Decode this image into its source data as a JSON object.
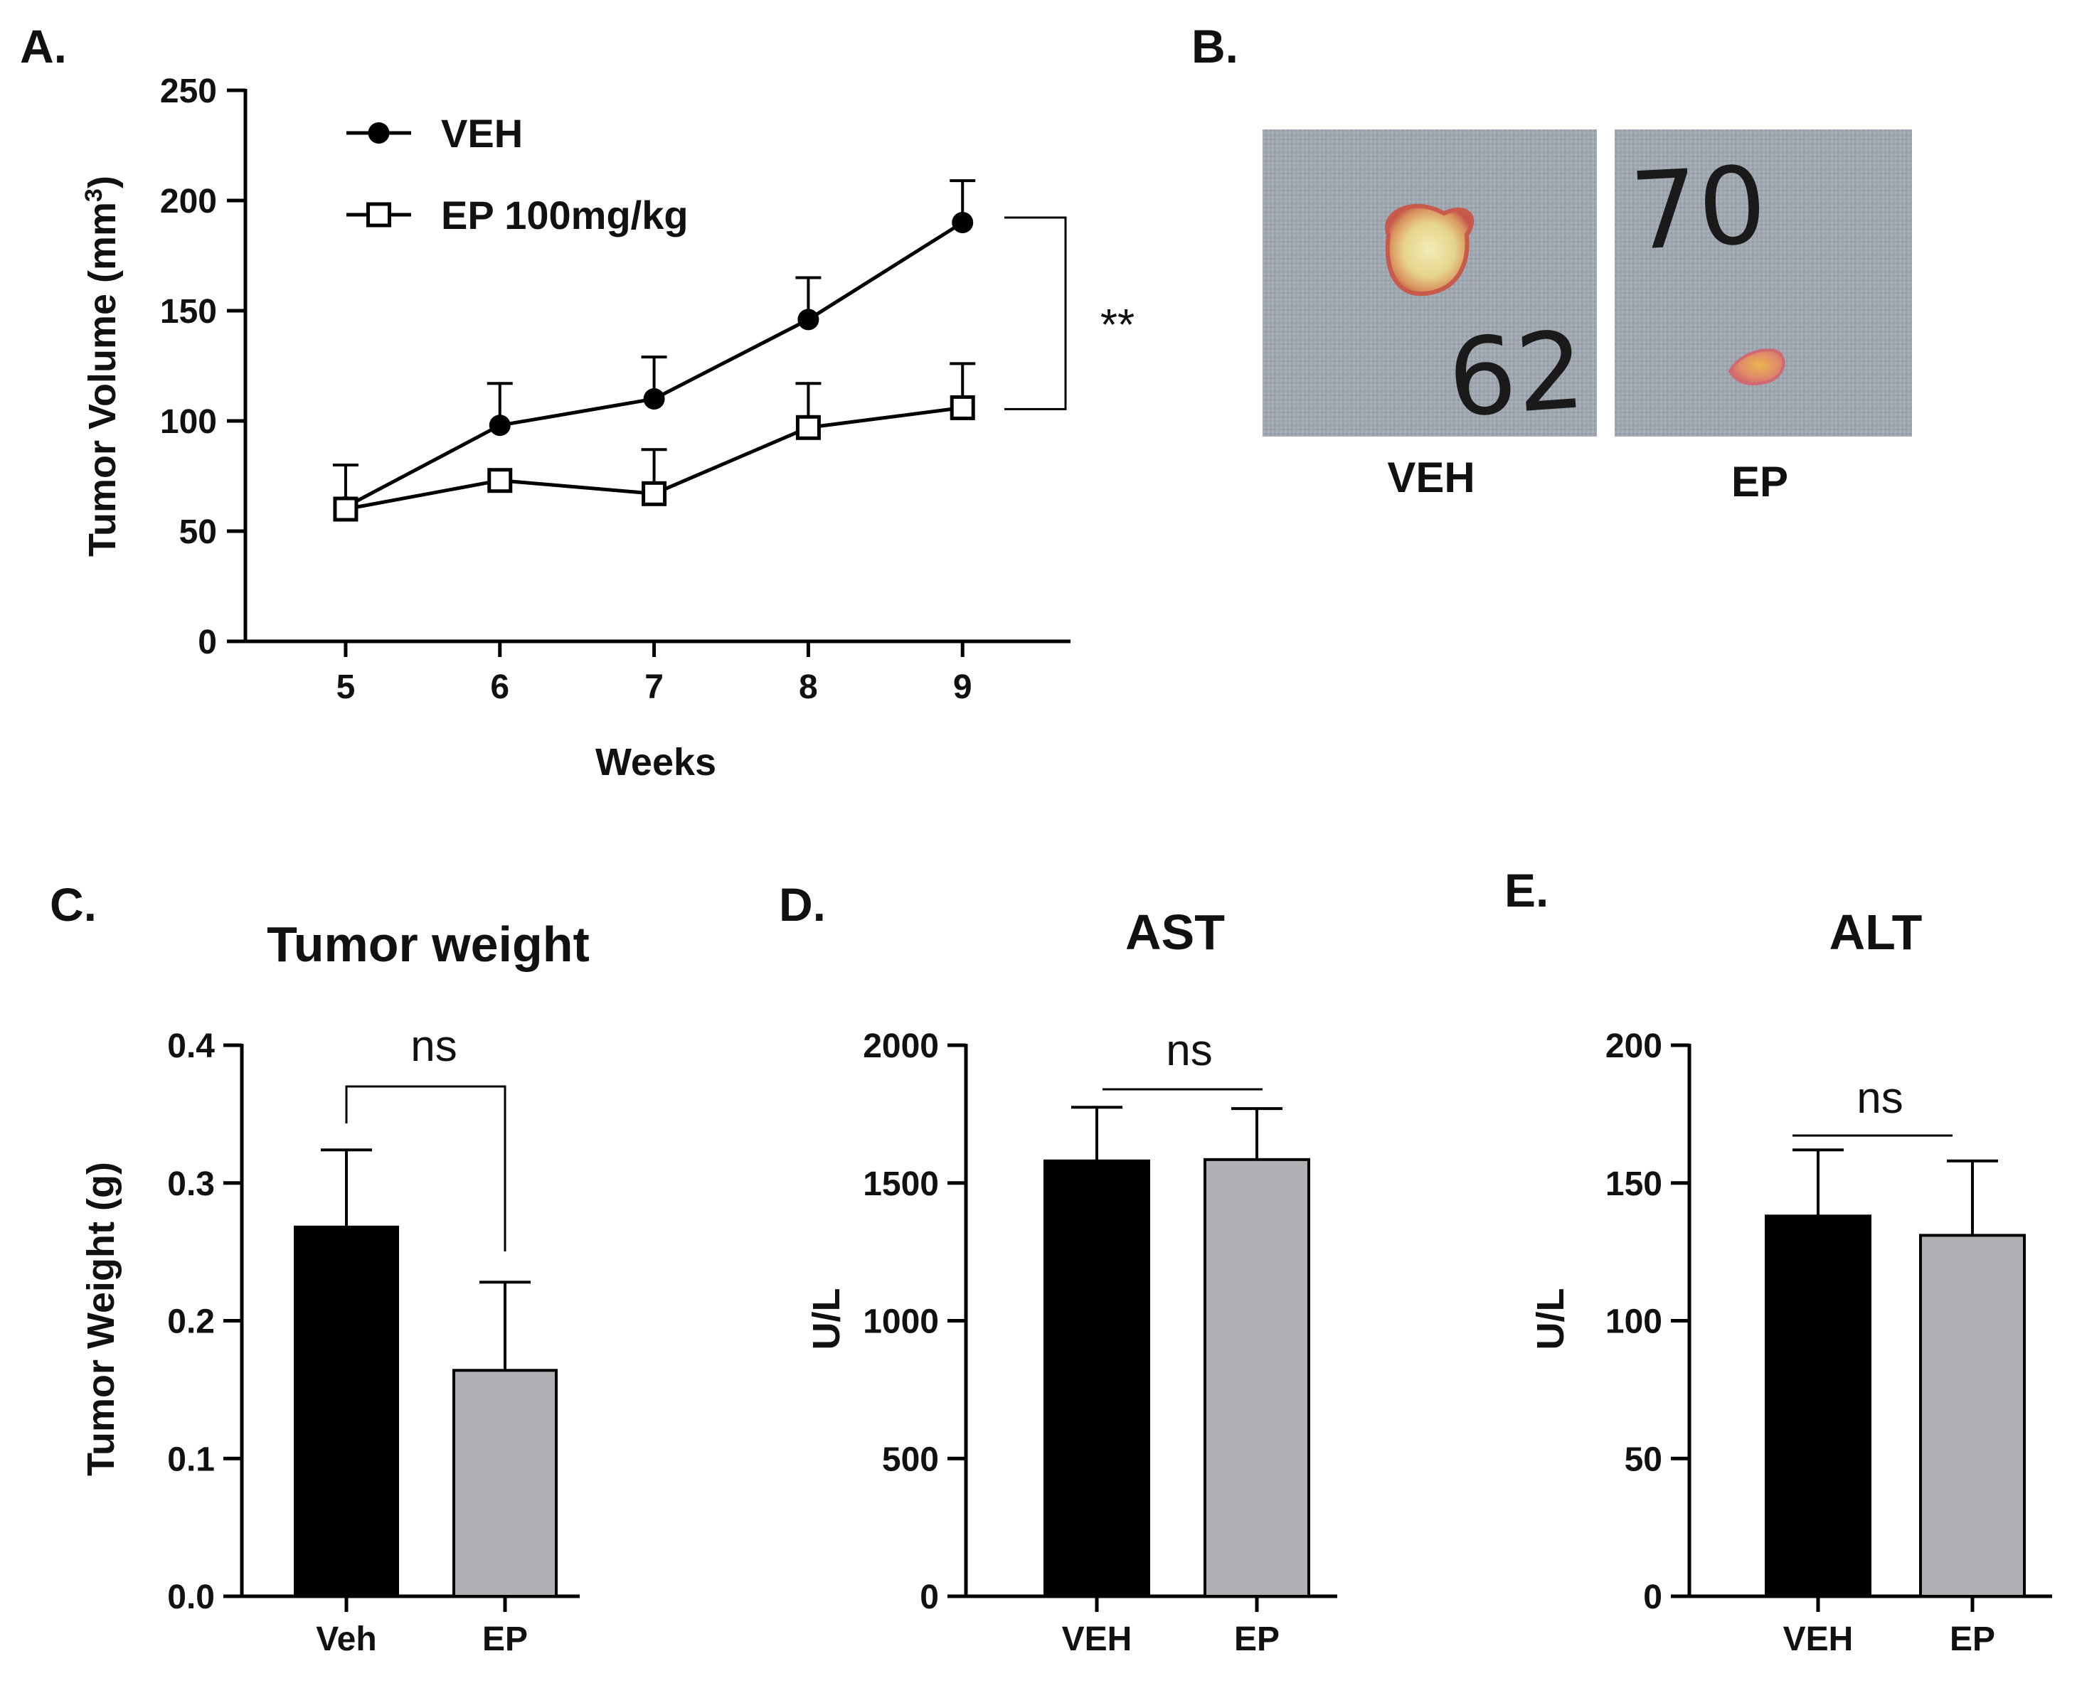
{
  "panels": {
    "A": {
      "letter": "A."
    },
    "B": {
      "letter": "B.",
      "photo_labels": [
        "VEH",
        "EP"
      ],
      "photo_marks": [
        "62",
        "70"
      ]
    },
    "C": {
      "letter": "C."
    },
    "D": {
      "letter": "D."
    },
    "E": {
      "letter": "E."
    }
  },
  "colors": {
    "veh": "#000000",
    "ep": "#b0b0b4",
    "axis": "#000000"
  },
  "chart_data": [
    {
      "id": "A",
      "type": "line",
      "title": "",
      "xlabel": "Weeks",
      "ylabel": "Tumor Volume (mm³)",
      "ylabel_base": "Tumor Volume (mm",
      "ylabel_sup": "3",
      "ylabel_close": ")",
      "x": [
        5,
        6,
        7,
        8,
        9
      ],
      "xlim": [
        4.35,
        9.7
      ],
      "ylim": [
        0,
        250
      ],
      "yticks": [
        0,
        50,
        100,
        150,
        200,
        250
      ],
      "series": [
        {
          "name": "VEH",
          "marker": "filled-circle",
          "values": [
            61,
            98,
            110,
            146,
            190
          ],
          "errors": [
            19,
            19,
            19,
            19,
            19
          ]
        },
        {
          "name": "EP 100mg/kg",
          "marker": "open-square",
          "values": [
            60,
            73,
            67,
            97,
            106
          ],
          "errors": [
            0,
            0,
            20,
            20,
            20
          ]
        }
      ],
      "significance": "**",
      "legend": "top-left"
    },
    {
      "id": "C",
      "type": "bar",
      "title": "Tumor weight",
      "xlabel": "",
      "ylabel": "Tumor Weight (g)",
      "categories": [
        "Veh",
        "EP"
      ],
      "values": [
        0.268,
        0.164
      ],
      "errors": [
        0.056,
        0.064
      ],
      "ylim": [
        0,
        0.4
      ],
      "yticks": [
        "0.0",
        "0.1",
        "0.2",
        "0.3",
        "0.4"
      ],
      "significance": "ns",
      "bracket": "angled"
    },
    {
      "id": "D",
      "type": "bar",
      "title": "AST",
      "xlabel": "",
      "ylabel": "U/L",
      "categories": [
        "VEH",
        "EP"
      ],
      "values": [
        1580,
        1585
      ],
      "errors": [
        195,
        185
      ],
      "ylim": [
        0,
        2000
      ],
      "yticks": [
        "0",
        "500",
        "1000",
        "1500",
        "2000"
      ],
      "significance": "ns",
      "bracket": "flat"
    },
    {
      "id": "E",
      "type": "bar",
      "title": "ALT",
      "xlabel": "",
      "ylabel": "U/L",
      "categories": [
        "VEH",
        "EP"
      ],
      "values": [
        138,
        131
      ],
      "errors": [
        24,
        27
      ],
      "ylim": [
        0,
        200
      ],
      "yticks": [
        "0",
        "50",
        "100",
        "150",
        "200"
      ],
      "significance": "ns",
      "bracket": "flat"
    }
  ]
}
